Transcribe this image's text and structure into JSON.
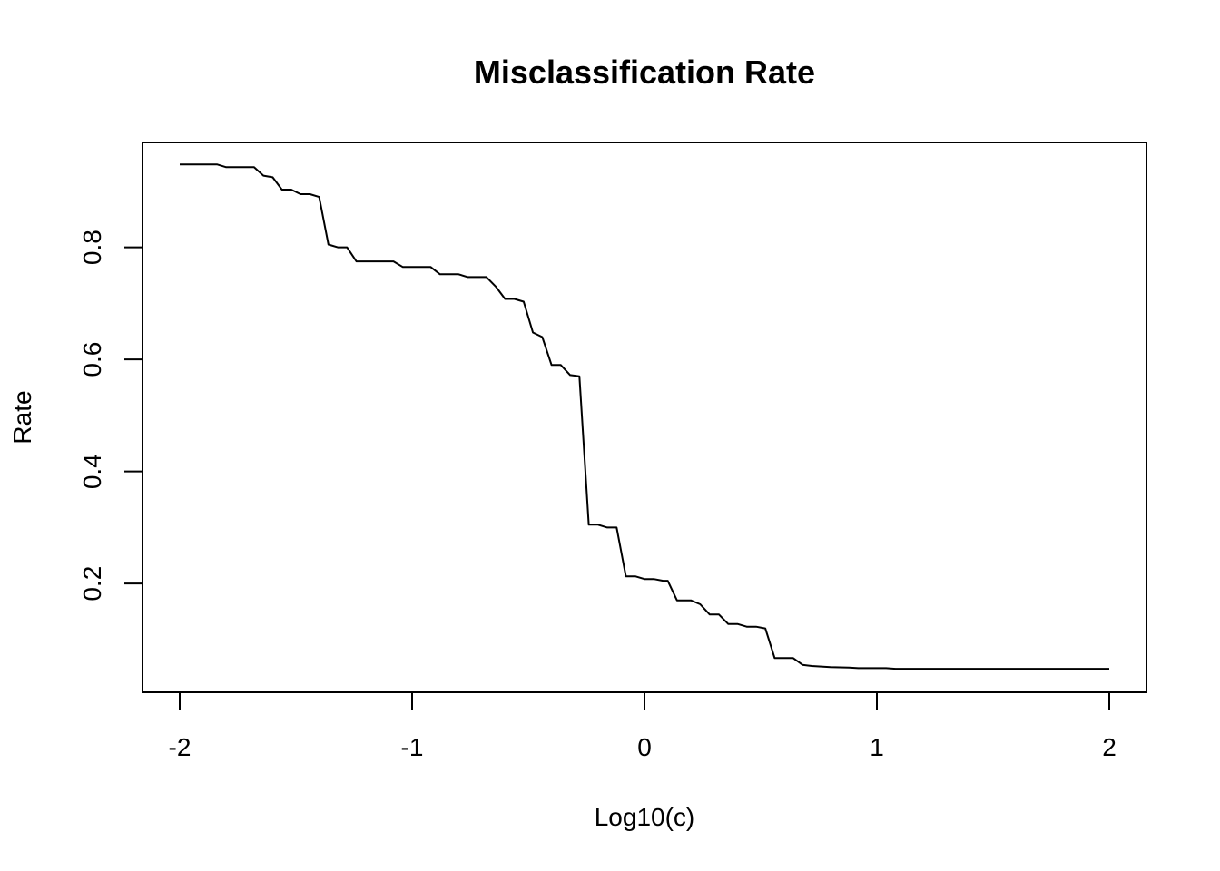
{
  "chart_data": {
    "type": "line",
    "title": "Misclassification Rate",
    "xlabel": "Log10(c)",
    "ylabel": "Rate",
    "xlim": [
      -2,
      2
    ],
    "ylim": [
      0.04,
      0.95
    ],
    "x_ticks": [
      -2,
      -1,
      0,
      1,
      2
    ],
    "x_tick_labels": [
      "-2",
      "-1",
      "0",
      "1",
      "2"
    ],
    "y_ticks": [
      0.2,
      0.4,
      0.6,
      0.8
    ],
    "y_tick_labels": [
      "0.2",
      "0.4",
      "0.6",
      "0.8"
    ],
    "grid": false,
    "series": [
      {
        "x": [
          -2.0,
          -1.84,
          -1.8,
          -1.68,
          -1.64,
          -1.6,
          -1.56,
          -1.52,
          -1.48,
          -1.44,
          -1.4,
          -1.36,
          -1.32,
          -1.28,
          -1.24,
          -1.2,
          -1.08,
          -1.04,
          -0.92,
          -0.88,
          -0.8,
          -0.76,
          -0.68,
          -0.64,
          -0.6,
          -0.56,
          -0.52,
          -0.48,
          -0.44,
          -0.4,
          -0.36,
          -0.32,
          -0.28,
          -0.24,
          -0.2,
          -0.16,
          -0.12,
          -0.08,
          -0.04,
          0.0,
          0.04,
          0.08,
          0.1,
          0.14,
          0.2,
          0.24,
          0.28,
          0.32,
          0.36,
          0.4,
          0.44,
          0.48,
          0.52,
          0.56,
          0.6,
          0.64,
          0.68,
          0.72,
          0.76,
          0.8,
          0.88,
          0.92,
          1.0,
          1.04,
          1.08,
          2.0
        ],
        "y": [
          0.948,
          0.948,
          0.943,
          0.943,
          0.928,
          0.925,
          0.903,
          0.903,
          0.895,
          0.895,
          0.89,
          0.805,
          0.8,
          0.8,
          0.775,
          0.775,
          0.775,
          0.765,
          0.765,
          0.752,
          0.752,
          0.747,
          0.747,
          0.73,
          0.708,
          0.708,
          0.703,
          0.648,
          0.64,
          0.59,
          0.59,
          0.572,
          0.57,
          0.305,
          0.305,
          0.3,
          0.3,
          0.213,
          0.213,
          0.208,
          0.208,
          0.205,
          0.205,
          0.17,
          0.17,
          0.163,
          0.145,
          0.145,
          0.128,
          0.128,
          0.123,
          0.123,
          0.12,
          0.067,
          0.067,
          0.067,
          0.055,
          0.053,
          0.052,
          0.051,
          0.05,
          0.049,
          0.049,
          0.049,
          0.048,
          0.048
        ]
      }
    ]
  }
}
